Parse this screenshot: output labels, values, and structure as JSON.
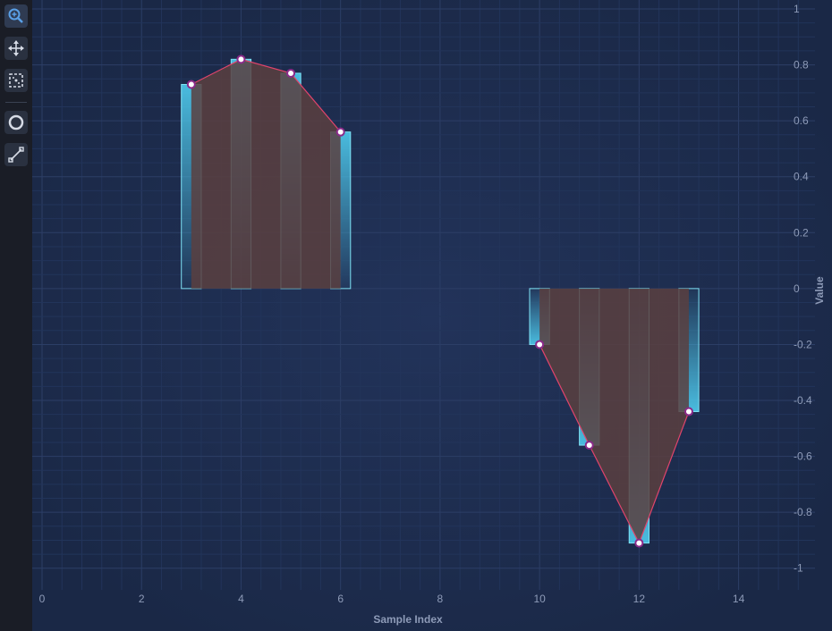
{
  "toolbar": {
    "tools": [
      {
        "name": "zoom-icon",
        "active": true
      },
      {
        "name": "pan-icon"
      },
      {
        "name": "zoom-extents-icon"
      },
      {
        "name": "rollover-icon"
      },
      {
        "name": "line-annotation-icon"
      }
    ]
  },
  "colors": {
    "background": "#1b2a4c",
    "bar_fill_top": "#4cc3e6",
    "bar_stroke": "#7fe3f5",
    "mountain_fill": "#5a3f3f",
    "line": "#e0446c",
    "marker_fill": "#ffffff",
    "marker_stroke": "#8b2a8a"
  },
  "chart_data": {
    "type": "bar",
    "xlabel": "Sample Index",
    "ylabel": "Value",
    "xlim": [
      0,
      15.5
    ],
    "ylim": [
      -1.02,
      1
    ],
    "xticks": [
      0,
      2,
      4,
      6,
      8,
      10,
      12,
      14
    ],
    "yticks": [
      1,
      0.8,
      0.6,
      0.4,
      0.2,
      0,
      -0.2,
      -0.4,
      -0.6,
      -0.8,
      -1
    ],
    "bar_width": 0.4,
    "series": [
      {
        "type": "mountain-line",
        "segments": [
          {
            "x": [
              3,
              4,
              5,
              6
            ],
            "y": [
              0.73,
              0.82,
              0.77,
              0.56
            ]
          },
          {
            "x": [
              10,
              11,
              12,
              13
            ],
            "y": [
              -0.2,
              -0.56,
              -0.91,
              -0.44
            ]
          }
        ]
      },
      {
        "type": "column",
        "x": [
          3,
          4,
          5,
          6,
          10,
          11,
          12,
          13
        ],
        "y": [
          0.73,
          0.82,
          0.77,
          0.56,
          -0.2,
          -0.56,
          -0.91,
          -0.44
        ]
      }
    ]
  }
}
